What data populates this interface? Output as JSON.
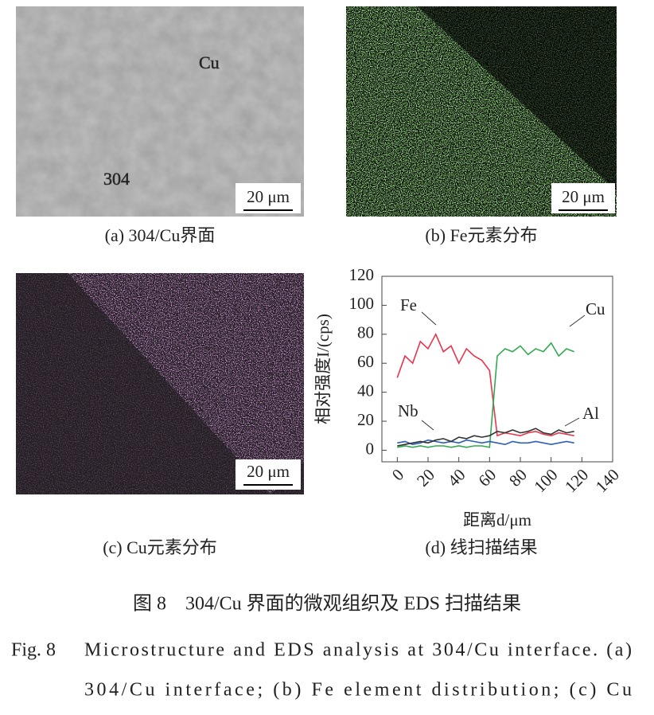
{
  "panels": {
    "a": {
      "caption": "(a) 304/Cu界面",
      "label_cu": "Cu",
      "label_304": "304",
      "scale": "20 μm"
    },
    "b": {
      "caption": "(b) Fe元素分布",
      "scale": "20 μm"
    },
    "c": {
      "caption": "(c) Cu元素分布",
      "scale": "20 μm"
    },
    "d": {
      "caption": "(d) 线扫描结果"
    }
  },
  "chart_data": {
    "type": "line",
    "x_label": "距离d/μm",
    "y_label": "相对强度I/(cps)",
    "x": [
      0,
      5,
      10,
      15,
      20,
      25,
      30,
      35,
      40,
      45,
      50,
      55,
      60,
      65,
      70,
      75,
      80,
      85,
      90,
      95,
      100,
      105,
      110,
      115
    ],
    "series": [
      {
        "name": "Fe",
        "color": "#e8344c",
        "values": [
          50,
          65,
          60,
          75,
          70,
          80,
          68,
          72,
          60,
          70,
          65,
          62,
          55,
          10,
          12,
          11,
          10,
          12,
          13,
          11,
          10,
          12,
          11,
          10
        ]
      },
      {
        "name": "Cu",
        "color": "#33a852",
        "values": [
          2,
          3,
          2,
          3,
          2,
          3,
          3,
          2,
          3,
          2,
          3,
          3,
          2,
          65,
          70,
          68,
          72,
          66,
          70,
          68,
          74,
          65,
          70,
          68
        ]
      },
      {
        "name": "Nb",
        "color": "#2f5fb5",
        "values": [
          5,
          6,
          4,
          5,
          7,
          6,
          5,
          6,
          5,
          7,
          6,
          5,
          6,
          5,
          4,
          6,
          5,
          5,
          6,
          5,
          4,
          5,
          6,
          5
        ]
      },
      {
        "name": "Al",
        "color": "#333333",
        "values": [
          3,
          4,
          5,
          6,
          5,
          7,
          8,
          6,
          9,
          8,
          10,
          9,
          10,
          13,
          12,
          14,
          12,
          13,
          15,
          12,
          11,
          14,
          12,
          13
        ]
      }
    ],
    "xlim": [
      -10,
      140
    ],
    "ylim": [
      -8,
      120
    ],
    "xticks": [
      0,
      20,
      40,
      60,
      80,
      100,
      120,
      140
    ],
    "yticks": [
      0,
      20,
      40,
      60,
      80,
      100,
      120
    ]
  },
  "caption_cn": "图 8　304/Cu 界面的微观组织及 EDS 扫描结果",
  "caption_en": {
    "label": "Fig. 8",
    "lines": [
      "Microstructure and EDS analysis at 304/Cu interface. (a)",
      "304/Cu interface; (b) Fe element distribution; (c) Cu"
    ]
  }
}
